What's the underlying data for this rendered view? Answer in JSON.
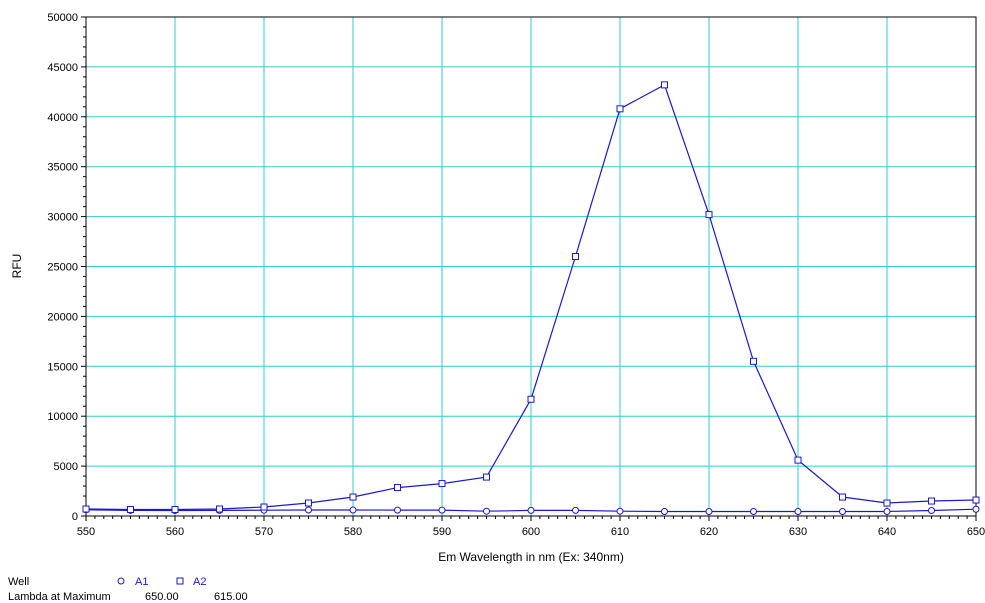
{
  "chart_data": {
    "type": "line",
    "title": "",
    "xlabel": "Em Wavelength in nm  (Ex: 340nm)",
    "ylabel": "RFU",
    "xlim": [
      550,
      650
    ],
    "ylim": [
      0,
      50000
    ],
    "x_ticks": [
      550,
      560,
      570,
      580,
      590,
      600,
      610,
      620,
      630,
      640,
      650
    ],
    "y_ticks": [
      0,
      5000,
      10000,
      15000,
      20000,
      25000,
      30000,
      35000,
      40000,
      45000,
      50000
    ],
    "grid": true,
    "grid_color": "#33cccc",
    "x": [
      550,
      555,
      560,
      565,
      570,
      575,
      580,
      585,
      590,
      595,
      600,
      605,
      610,
      615,
      620,
      625,
      630,
      635,
      640,
      645,
      650
    ],
    "series": [
      {
        "name": "A1",
        "marker": "circle",
        "color": "#1a1acc",
        "values": [
          620,
          560,
          550,
          560,
          580,
          600,
          600,
          590,
          590,
          480,
          560,
          560,
          480,
          450,
          450,
          450,
          450,
          450,
          450,
          550,
          680
        ]
      },
      {
        "name": "A2",
        "marker": "square",
        "color": "#1a1acc",
        "values": [
          700,
          650,
          650,
          700,
          900,
          1300,
          1900,
          2850,
          3250,
          3900,
          11700,
          26000,
          40800,
          43200,
          30200,
          15500,
          5600,
          1900,
          1300,
          1500,
          1600
        ]
      }
    ]
  },
  "legend": {
    "well_label": "Well",
    "lambda_label": "Lambda at Maximum",
    "items": [
      {
        "name": "A1",
        "marker": "circle",
        "lambda": "650.00"
      },
      {
        "name": "A2",
        "marker": "square",
        "lambda": "615.00"
      }
    ]
  }
}
